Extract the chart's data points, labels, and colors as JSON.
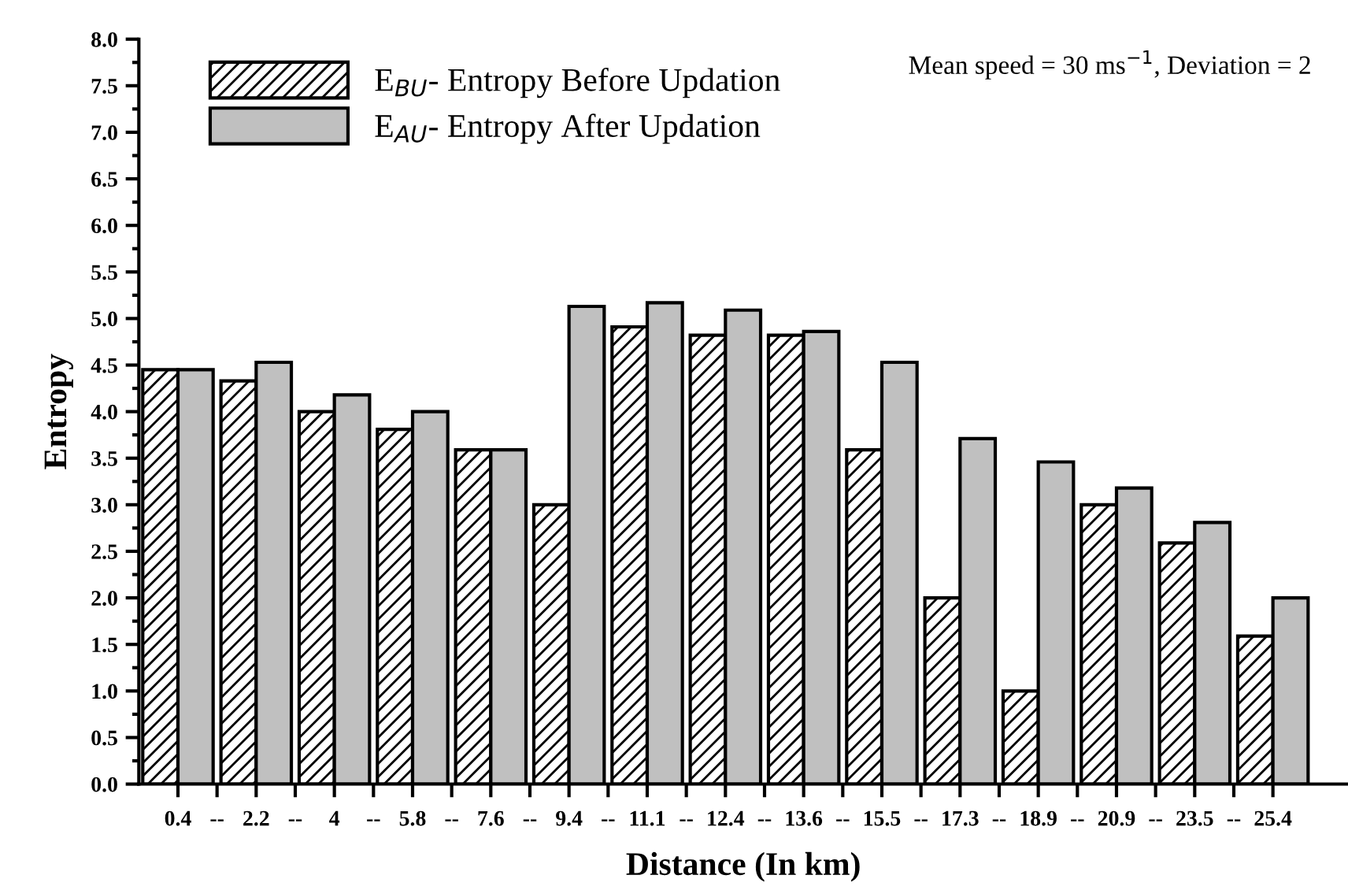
{
  "chart_data": {
    "type": "bar",
    "xlabel": "Distance (In km)",
    "ylabel": "Entropy",
    "categories": [
      "0.4",
      "2.2",
      "4",
      "5.8",
      "7.6",
      "9.4",
      "11.1",
      "12.4",
      "13.6",
      "15.5",
      "17.3",
      "18.9",
      "20.9",
      "23.5",
      "25.4"
    ],
    "series": [
      {
        "name": "E$_{BU}$- Entropy Before Updation",
        "color": "#000000",
        "values": [
          4.45,
          4.33,
          4.0,
          3.81,
          3.59,
          3.0,
          4.91,
          4.82,
          4.82,
          3.59,
          2.0,
          1.0,
          3.0,
          2.59,
          1.59
        ]
      },
      {
        "name": "E$_{AU}$- Entropy After Updation",
        "color": "#c0c0c0",
        "values": [
          4.45,
          4.53,
          4.18,
          4.0,
          3.59,
          5.13,
          5.17,
          5.09,
          4.86,
          4.53,
          3.71,
          3.46,
          3.18,
          2.81,
          2.0
        ]
      }
    ],
    "ylim": [
      0,
      8
    ],
    "yticks": [
      {
        "value": 0,
        "label": "0.0"
      },
      0.5,
      {
        "value": 1,
        "label": "1.0"
      },
      1.5,
      {
        "value": 2,
        "label": "2.0"
      },
      2.5,
      {
        "value": 3,
        "label": "3.0"
      },
      3.5,
      {
        "value": 4,
        "label": "4.0"
      },
      4.5,
      {
        "value": 5,
        "label": "5.0"
      },
      5.5,
      {
        "value": 6,
        "label": "6.0"
      },
      6.5,
      {
        "value": 7,
        "label": "7.0"
      },
      7.5,
      {
        "value": 8,
        "label": "8.0"
      }
    ],
    "legend": "top left",
    "grid": false,
    "annotations": [
      "Mean speed = 30 ms$^{−1}$, Deviation = 2",
      "--",
      "--",
      "--",
      "--",
      "--",
      "--",
      "--",
      "--",
      "--",
      "--",
      "--",
      "--",
      "--",
      "--"
    ]
  }
}
